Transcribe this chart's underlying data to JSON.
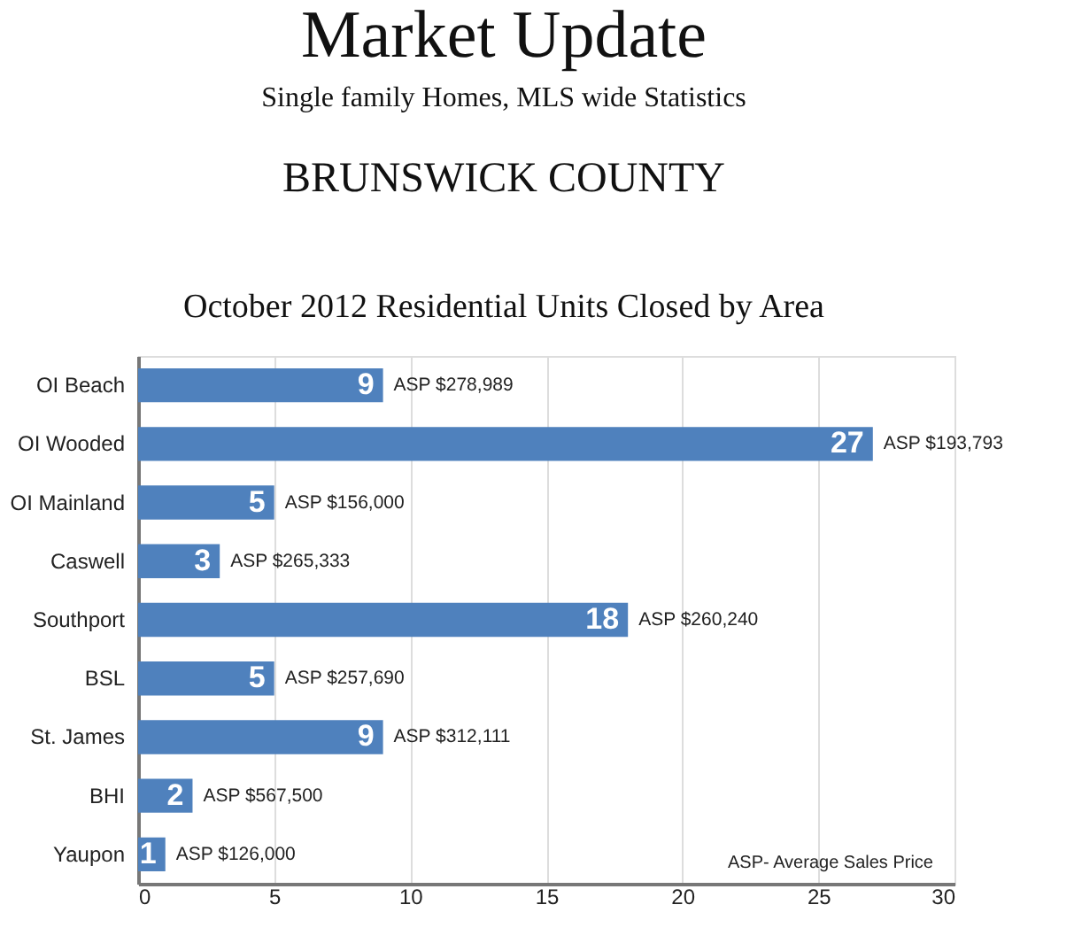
{
  "chart_data": {
    "type": "bar",
    "orientation": "horizontal",
    "title": "Market Update",
    "subtitle": "Single family Homes, MLS wide Statistics",
    "categories": [
      "OI Beach",
      "OI Wooded",
      "OI Mainland",
      "Caswell",
      "Southport",
      "BSL",
      "St. James",
      "BHI",
      "Yaupon"
    ],
    "values": [
      9,
      27,
      5,
      3,
      18,
      5,
      9,
      2,
      1
    ],
    "color": "#4f81bd",
    "data_labels": true,
    "xlim": [
      0,
      30
    ],
    "xticks": [
      0,
      5,
      10,
      15,
      20,
      25,
      30
    ],
    "grid": "x",
    "annotations": [
      "BRUNSWICK COUNTY",
      "October 2012 Residential Units Closed by Area",
      "ASP- Average Sales Price",
      {
        "text": "ASP $278,989",
        "x": 9,
        "y": "OI Beach"
      },
      {
        "text": "ASP $193,793",
        "x": 27,
        "y": "OI Wooded"
      },
      {
        "text": "ASP $156,000",
        "x": 5,
        "y": "OI Mainland"
      },
      {
        "text": "ASP $265,333",
        "x": 3,
        "y": "Caswell"
      },
      {
        "text": "ASP $260,240",
        "x": 18,
        "y": "Southport"
      },
      {
        "text": "ASP $257,690",
        "x": 5,
        "y": "BSL"
      },
      {
        "text": "ASP $312,111",
        "x": 9,
        "y": "St. James"
      },
      {
        "text": "ASP $567,500",
        "x": 2,
        "y": "BHI"
      },
      {
        "text": "ASP $126,000",
        "x": 1,
        "y": "Yaupon"
      }
    ]
  }
}
